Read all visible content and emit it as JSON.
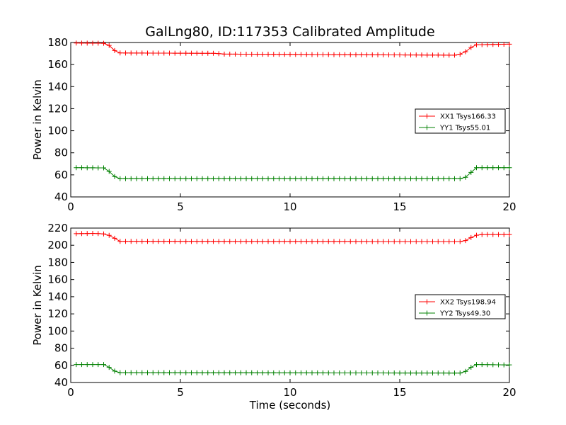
{
  "figure": {
    "title": "GalLng80, ID:117353 Calibrated Amplitude",
    "colors": {
      "xx": "#ff0000",
      "yy": "#008000",
      "axes": "#000000",
      "background": "#ffffff"
    }
  },
  "chart_data": [
    {
      "type": "line",
      "title": "GalLng80, ID:117353 Calibrated Amplitude",
      "xlabel": "",
      "ylabel": "Power in Kelvin",
      "xlim": [
        0,
        20
      ],
      "ylim": [
        40,
        180
      ],
      "xticks": [
        0,
        5,
        10,
        15,
        20
      ],
      "yticks": [
        40,
        60,
        80,
        100,
        120,
        140,
        160,
        180
      ],
      "grid": false,
      "legend_position": "center-right",
      "marker": "+",
      "series": [
        {
          "name": "XX1 Tsys166.33",
          "color": "#ff0000",
          "points": [
            [
              0.25,
              179.5
            ],
            [
              1.5,
              179.3
            ],
            [
              1.8,
              177
            ],
            [
              2.1,
              170.5
            ],
            [
              6.5,
              170.2
            ],
            [
              7,
              169.5
            ],
            [
              17.5,
              168.5
            ],
            [
              17.9,
              170
            ],
            [
              18.2,
              175
            ],
            [
              18.5,
              178
            ],
            [
              20,
              178.5
            ]
          ]
        },
        {
          "name": "YY1 Tsys55.01",
          "color": "#008000",
          "points": [
            [
              0.25,
              66.5
            ],
            [
              1.5,
              66.3
            ],
            [
              1.8,
              62.5
            ],
            [
              2.1,
              56.5
            ],
            [
              17.8,
              56.5
            ],
            [
              18.1,
              58.5
            ],
            [
              18.3,
              63.5
            ],
            [
              18.5,
              66.5
            ],
            [
              20,
              66.5
            ]
          ]
        }
      ]
    },
    {
      "type": "line",
      "xlabel": "Time (seconds)",
      "ylabel": "Power in Kelvin",
      "xlim": [
        0,
        20
      ],
      "ylim": [
        40,
        220
      ],
      "xticks": [
        0,
        5,
        10,
        15,
        20
      ],
      "yticks": [
        40,
        60,
        80,
        100,
        120,
        140,
        160,
        180,
        200,
        220
      ],
      "grid": false,
      "legend_position": "center-right",
      "marker": "+",
      "series": [
        {
          "name": "XX2 Tsys198.94",
          "color": "#ff0000",
          "points": [
            [
              0.25,
              213.5
            ],
            [
              1.1,
              213.8
            ],
            [
              1.6,
              213
            ],
            [
              1.9,
              210
            ],
            [
              2.2,
              204.5
            ],
            [
              17.8,
              204.3
            ],
            [
              18.1,
              206
            ],
            [
              18.3,
              210
            ],
            [
              18.6,
              212.5
            ],
            [
              20,
              212.5
            ]
          ]
        },
        {
          "name": "YY2 Tsys49.30",
          "color": "#008000",
          "points": [
            [
              0.25,
              61
            ],
            [
              1.5,
              61
            ],
            [
              1.8,
              57
            ],
            [
              2.1,
              51.5
            ],
            [
              17.8,
              51
            ],
            [
              18.1,
              54
            ],
            [
              18.3,
              59
            ],
            [
              18.5,
              61
            ],
            [
              20,
              60.5
            ]
          ]
        }
      ]
    }
  ]
}
